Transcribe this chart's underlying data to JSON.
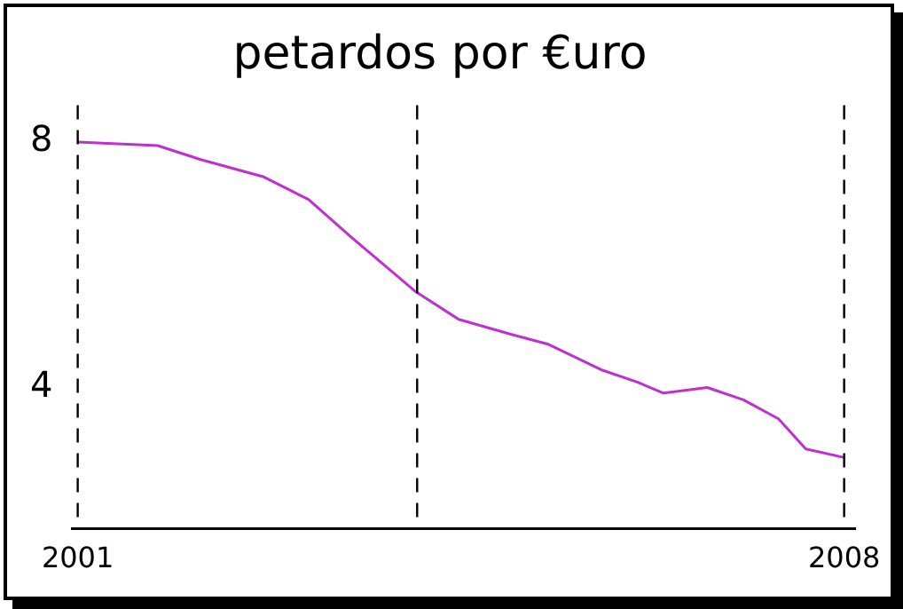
{
  "chart_data": {
    "type": "line",
    "title": "petardos por €uro",
    "x": [
      2001,
      2001.73,
      2002.13,
      2002.7,
      2003.11,
      2003.51,
      2004.08,
      2004.48,
      2004.97,
      2005.29,
      2005.78,
      2006.11,
      2006.35,
      2006.75,
      2007.08,
      2007.4,
      2007.65,
      2008
    ],
    "series": [
      {
        "color": "#c030d0",
        "values": [
          8,
          7.94,
          7.71,
          7.43,
          7.06,
          6.43,
          5.57,
          5.11,
          4.86,
          4.71,
          4.29,
          4.09,
          3.91,
          4,
          3.8,
          3.49,
          3,
          2.86
        ]
      }
    ],
    "xlim": [
      2000.95,
      2008.1
    ],
    "xticks": [
      2001,
      2008
    ],
    "ylim": [
      1.7,
      8.6
    ],
    "yticks": [
      4,
      8
    ],
    "ref_lines": [
      {
        "axis": "x",
        "value": 2001,
        "color": "#000000",
        "line_style": "dashed"
      },
      {
        "axis": "x",
        "value": 2004.1,
        "color": "#000000",
        "line_style": "dashed"
      },
      {
        "axis": "x",
        "value": 2008,
        "color": "#000000",
        "line_style": "dashed"
      }
    ],
    "grid": false,
    "legend": false,
    "marker": "none",
    "line_style": "solid"
  }
}
